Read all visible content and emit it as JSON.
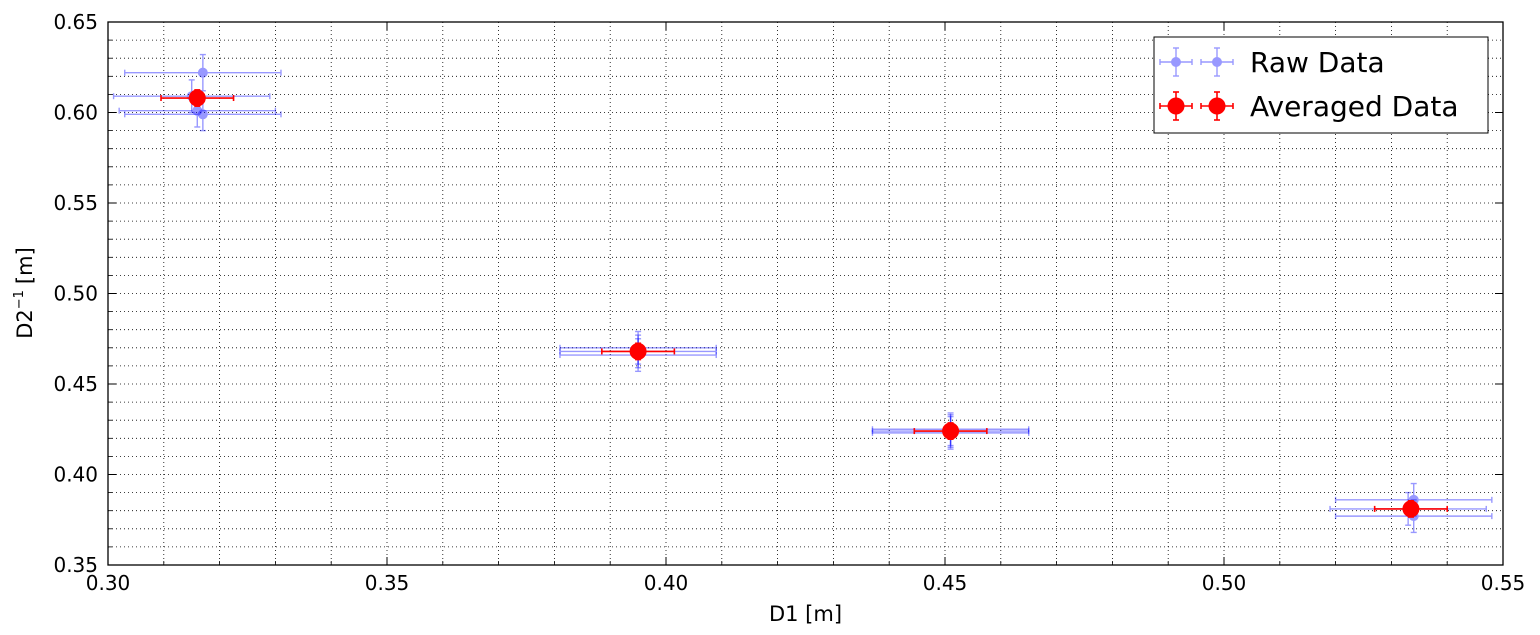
{
  "chart_data": {
    "type": "scatter",
    "title": "",
    "xlabel": "D1 [m]",
    "ylabel_base": "D2",
    "ylabel_sup": "−1",
    "ylabel_unit": "[m]",
    "xlim": [
      0.3,
      0.55
    ],
    "ylim": [
      0.35,
      0.65
    ],
    "x_ticks": [
      0.3,
      0.35,
      0.4,
      0.45,
      0.5,
      0.55
    ],
    "x_tick_labels": [
      "0.30",
      "0.35",
      "0.40",
      "0.45",
      "0.50",
      "0.55"
    ],
    "y_ticks": [
      0.35,
      0.4,
      0.45,
      0.5,
      0.55,
      0.6,
      0.65
    ],
    "y_tick_labels": [
      "0.35",
      "0.40",
      "0.45",
      "0.50",
      "0.55",
      "0.60",
      "0.65"
    ],
    "x_minor_step": 0.01,
    "y_minor_step": 0.01,
    "grid": true,
    "legend_position": "top-right",
    "series": [
      {
        "name": "Raw Data",
        "color": "#0000ff",
        "alpha": 0.4,
        "points": [
          {
            "x": 0.317,
            "y": 0.622,
            "xerr": 0.014,
            "yerr": 0.01
          },
          {
            "x": 0.315,
            "y": 0.609,
            "xerr": 0.014,
            "yerr": 0.009
          },
          {
            "x": 0.316,
            "y": 0.601,
            "xerr": 0.014,
            "yerr": 0.009
          },
          {
            "x": 0.317,
            "y": 0.599,
            "xerr": 0.014,
            "yerr": 0.009
          },
          {
            "x": 0.395,
            "y": 0.47,
            "xerr": 0.014,
            "yerr": 0.009
          },
          {
            "x": 0.395,
            "y": 0.468,
            "xerr": 0.014,
            "yerr": 0.009
          },
          {
            "x": 0.395,
            "y": 0.466,
            "xerr": 0.014,
            "yerr": 0.009
          },
          {
            "x": 0.451,
            "y": 0.425,
            "xerr": 0.014,
            "yerr": 0.009
          },
          {
            "x": 0.451,
            "y": 0.424,
            "xerr": 0.014,
            "yerr": 0.009
          },
          {
            "x": 0.451,
            "y": 0.423,
            "xerr": 0.014,
            "yerr": 0.009
          },
          {
            "x": 0.534,
            "y": 0.386,
            "xerr": 0.014,
            "yerr": 0.009
          },
          {
            "x": 0.533,
            "y": 0.381,
            "xerr": 0.014,
            "yerr": 0.009
          },
          {
            "x": 0.534,
            "y": 0.377,
            "xerr": 0.014,
            "yerr": 0.009
          }
        ]
      },
      {
        "name": "Averaged Data",
        "color": "#ff0000",
        "alpha": 1.0,
        "points": [
          {
            "x": 0.316,
            "y": 0.608,
            "xerr": 0.0065,
            "yerr": 0.0045
          },
          {
            "x": 0.395,
            "y": 0.468,
            "xerr": 0.0065,
            "yerr": 0.0045
          },
          {
            "x": 0.451,
            "y": 0.424,
            "xerr": 0.0065,
            "yerr": 0.0045
          },
          {
            "x": 0.5335,
            "y": 0.381,
            "xerr": 0.0065,
            "yerr": 0.0045
          }
        ]
      }
    ]
  }
}
